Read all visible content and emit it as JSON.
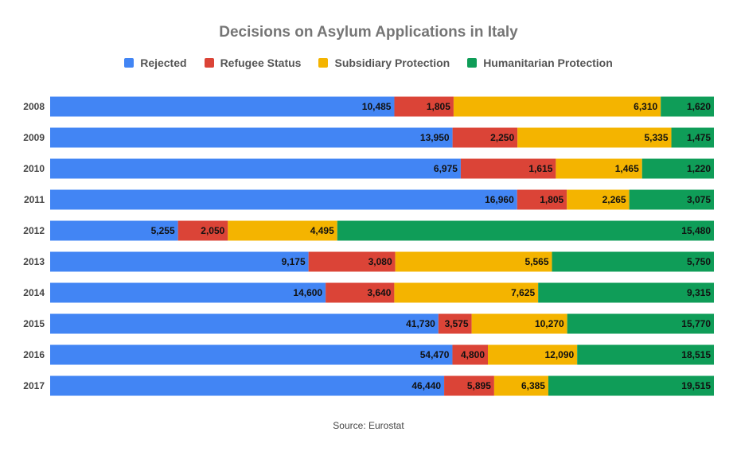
{
  "chart_data": {
    "type": "bar",
    "orientation": "horizontal",
    "stacked": "percent",
    "title": "Decisions on Asylum Applications in Italy",
    "source": "Source: Eurostat",
    "legend_position": "top",
    "grid": false,
    "categories": [
      "2008",
      "2009",
      "2010",
      "2011",
      "2012",
      "2013",
      "2014",
      "2015",
      "2016",
      "2017"
    ],
    "series": [
      {
        "name": "Rejected",
        "color": "#4285F4",
        "values": [
          10485,
          13950,
          6975,
          16960,
          5255,
          9175,
          14600,
          41730,
          54470,
          46440
        ],
        "labels": [
          "10,485",
          "13,950",
          "6,975",
          "16,960",
          "5,255",
          "9,175",
          "14,600",
          "41,730",
          "54,470",
          "46,440"
        ]
      },
      {
        "name": "Refugee Status",
        "color": "#DB4437",
        "values": [
          1805,
          2250,
          1615,
          1805,
          2050,
          3080,
          3640,
          3575,
          4800,
          5895
        ],
        "labels": [
          "1,805",
          "2,250",
          "1,615",
          "1,805",
          "2,050",
          "3,080",
          "3,640",
          "3,575",
          "4,800",
          "5,895"
        ]
      },
      {
        "name": "Subsidiary Protection",
        "color": "#F4B400",
        "values": [
          6310,
          5335,
          1465,
          2265,
          4495,
          5565,
          7625,
          10270,
          12090,
          6385
        ],
        "labels": [
          "6,310",
          "5,335",
          "1,465",
          "2,265",
          "4,495",
          "5,565",
          "7,625",
          "10,270",
          "12,090",
          "6,385"
        ]
      },
      {
        "name": "Humanitarian Protection",
        "color": "#0F9D58",
        "values": [
          1620,
          1475,
          1220,
          3075,
          15480,
          5750,
          9315,
          15770,
          18515,
          19515
        ],
        "labels": [
          "1,620",
          "1,475",
          "1,220",
          "3,075",
          "15,480",
          "5,750",
          "9,315",
          "15,770",
          "18,515",
          "19,515"
        ]
      }
    ]
  }
}
